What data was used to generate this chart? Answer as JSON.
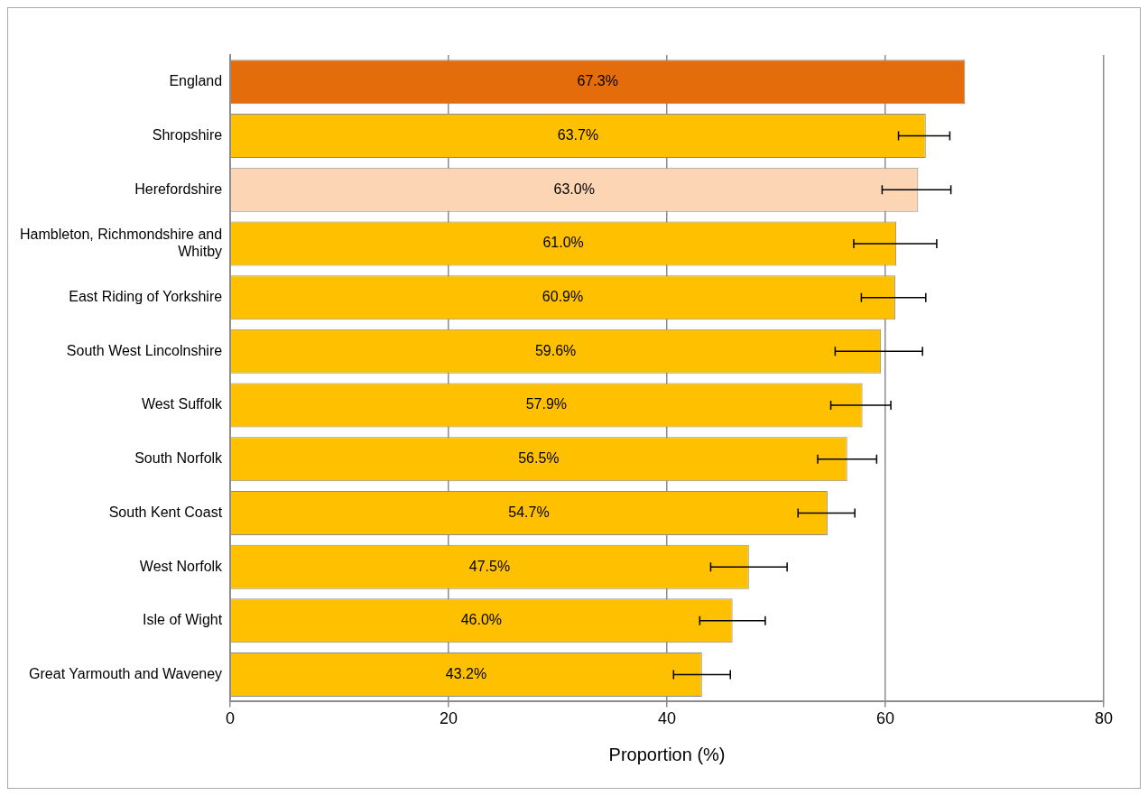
{
  "chart_data": {
    "type": "bar",
    "orientation": "horizontal",
    "xlabel": "Proportion (%)",
    "categories": [
      "England",
      "Shropshire",
      "Herefordshire",
      "Hambleton, Richmondshire and Whitby",
      "East Riding of Yorkshire",
      "South West Lincolnshire",
      "West Suffolk",
      "South Norfolk",
      "South Kent Coast",
      "West Norfolk",
      "Isle of Wight",
      "Great Yarmouth and Waveney"
    ],
    "values": [
      67.3,
      63.7,
      63.0,
      61.0,
      60.9,
      59.6,
      57.9,
      56.5,
      54.7,
      47.5,
      46.0,
      43.2
    ],
    "colors": [
      "#e46c0a",
      "#ffc000",
      "#fcd5b5",
      "#ffc000",
      "#ffc000",
      "#ffc000",
      "#ffc000",
      "#ffc000",
      "#ffc000",
      "#ffc000",
      "#ffc000",
      "#ffc000"
    ],
    "errors": [
      null,
      [
        61.2,
        65.9
      ],
      [
        59.7,
        66.0
      ],
      [
        57.1,
        64.7
      ],
      [
        57.8,
        63.7
      ],
      [
        55.4,
        63.4
      ],
      [
        55.0,
        60.5
      ],
      [
        53.8,
        59.2
      ],
      [
        52.0,
        57.2
      ],
      [
        44.0,
        51.0
      ],
      [
        43.0,
        49.0
      ],
      [
        40.6,
        45.8
      ]
    ],
    "value_labels": [
      "67.3%",
      "63.7%",
      "63.0%",
      "61.0%",
      "60.9%",
      "59.6%",
      "57.9%",
      "56.5%",
      "54.7%",
      "47.5%",
      "46.0%",
      "43.2%"
    ],
    "xlim": [
      0,
      80
    ],
    "xticks": [
      0,
      20,
      40,
      60,
      80
    ],
    "grid": "x",
    "legend": false
  }
}
